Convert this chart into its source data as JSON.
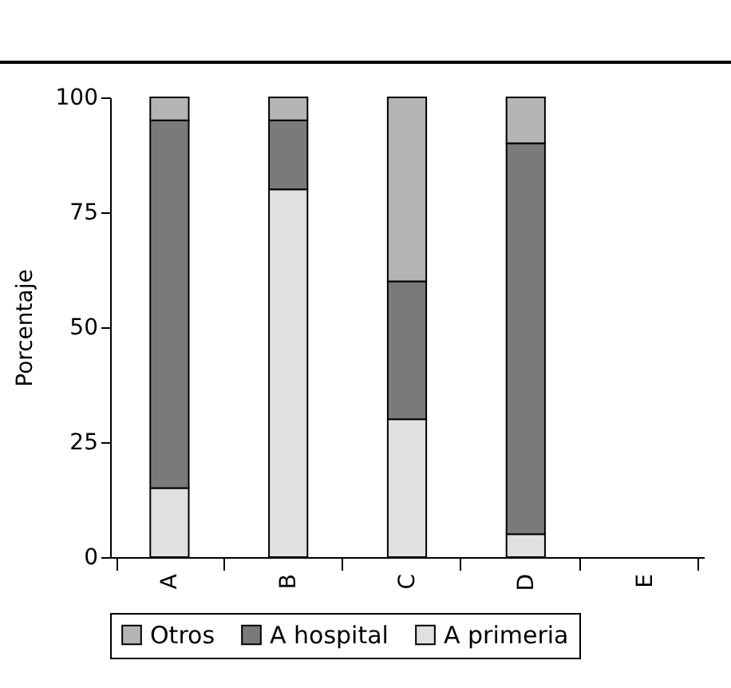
{
  "chart_data": {
    "type": "bar",
    "stacked": true,
    "ylabel": "Porcentaje",
    "categories": [
      "A",
      "B",
      "C",
      "D",
      "E"
    ],
    "series": [
      {
        "name": "A primeria",
        "color": "#e0e0e0",
        "values": [
          15,
          80,
          30,
          5,
          null
        ]
      },
      {
        "name": "A hospital",
        "color": "#7a7a7a",
        "values": [
          80,
          15,
          30,
          85,
          null
        ]
      },
      {
        "name": "Otros",
        "color": "#b4b4b4",
        "values": [
          5,
          5,
          40,
          10,
          null
        ]
      }
    ],
    "ylim": [
      0,
      100
    ],
    "yticks": [
      0,
      25,
      50,
      75,
      100
    ],
    "grid": false,
    "legend": "bottom"
  }
}
